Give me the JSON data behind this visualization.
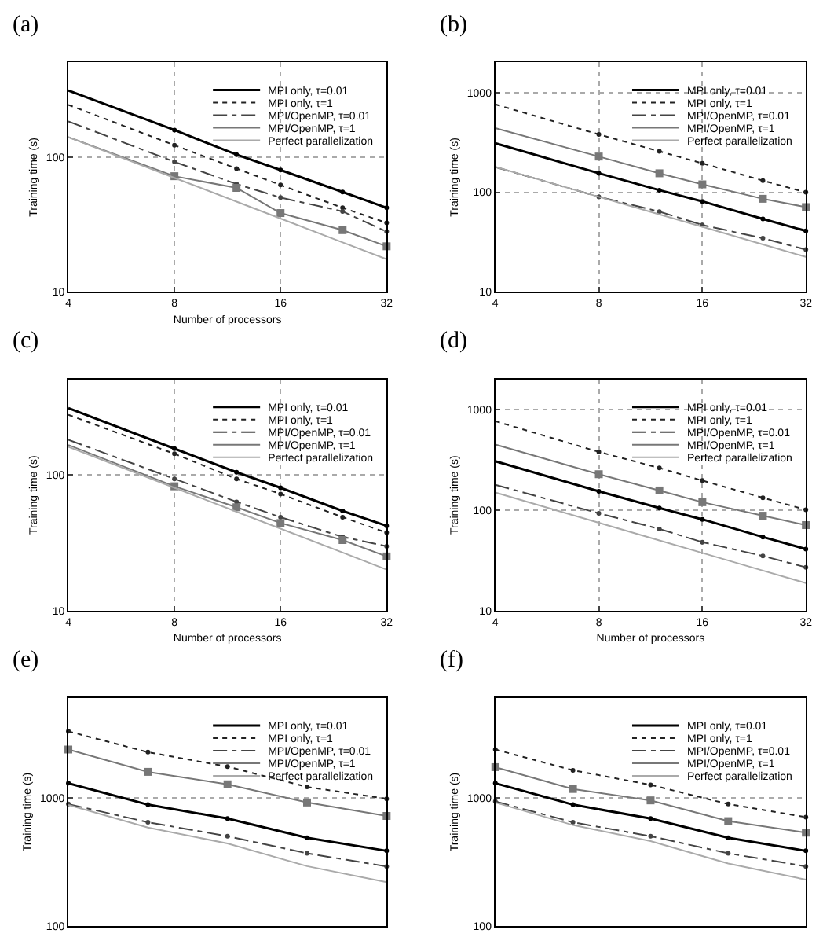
{
  "chart_data": [
    {
      "type": "line",
      "title": "(a)",
      "xlabel": "Number of processors",
      "ylabel": "Training time (s)",
      "log": "xy",
      "grid": true,
      "legend": "top right",
      "x": [
        4,
        8,
        12,
        16,
        24,
        32
      ],
      "xlim": [
        4,
        32
      ],
      "xticks": [
        4,
        8,
        16,
        32
      ],
      "ylim": [
        10,
        500
      ],
      "yticks": [
        10,
        100
      ],
      "series": [
        {
          "name": "MPI only, τ=0.01",
          "color": "#000000",
          "line_style": "solid",
          "marker": "circle",
          "values": [
            310,
            158,
            104,
            80,
            55,
            42
          ]
        },
        {
          "name": "MPI only, τ=1",
          "color": "#222222",
          "line_style": "dotted",
          "marker": "circle",
          "values": [
            243,
            122,
            82,
            62,
            42,
            32.5
          ]
        },
        {
          "name": "MPI/OpenMP, τ=0.01",
          "color": "#444444",
          "line_style": "dashed",
          "marker": "circle",
          "values": [
            183,
            92,
            63,
            50,
            39.5,
            28
          ]
        },
        {
          "name": "MPI/OpenMP, τ=1",
          "color": "#777777",
          "line_style": "solid",
          "marker": "square",
          "values": [
            140,
            72,
            59,
            38.4,
            28.7,
            21.8
          ]
        },
        {
          "name": "Perfect parallelization",
          "color": "#aaaaaa",
          "line_style": "solid",
          "marker": "none",
          "values": [
            140,
            70,
            46.7,
            35,
            23.3,
            17.5
          ]
        }
      ]
    },
    {
      "type": "line",
      "title": "(b)",
      "ylabel": "Training time (s)",
      "log": "xy",
      "grid": true,
      "legend": "top right",
      "x": [
        4,
        8,
        12,
        16,
        24,
        32
      ],
      "xlim": [
        4,
        32
      ],
      "xticks": [
        4,
        8,
        16,
        32
      ],
      "ylim": [
        10,
        2000
      ],
      "yticks": [
        10,
        100,
        1000
      ],
      "series": [
        {
          "name": "MPI only, τ=0.01",
          "color": "#000000",
          "line_style": "solid",
          "marker": "circle",
          "values": [
            310,
            155,
            105,
            81,
            54,
            41
          ]
        },
        {
          "name": "MPI only, τ=1",
          "color": "#222222",
          "line_style": "dotted",
          "marker": "circle",
          "values": [
            760,
            380,
            257,
            195,
            131,
            100
          ]
        },
        {
          "name": "MPI/OpenMP, τ=0.01",
          "color": "#444444",
          "line_style": "dashed",
          "marker": "circle",
          "values": [
            179,
            90,
            64,
            47,
            34.6,
            26.6
          ]
        },
        {
          "name": "MPI/OpenMP, τ=1",
          "color": "#777777",
          "line_style": "solid",
          "marker": "square",
          "values": [
            439,
            228,
            155,
            120,
            86,
            71
          ]
        },
        {
          "name": "Perfect parallelization",
          "color": "#aaaaaa",
          "line_style": "solid",
          "marker": "none",
          "values": [
            180,
            90,
            60,
            45,
            30,
            22.5
          ]
        }
      ]
    },
    {
      "type": "line",
      "title": "(c)",
      "xlabel": "Number of processors",
      "ylabel": "Training time (s)",
      "log": "xy",
      "grid": true,
      "legend": "top right",
      "x": [
        4,
        8,
        12,
        16,
        24,
        32
      ],
      "xlim": [
        4,
        32
      ],
      "xticks": [
        4,
        8,
        16,
        32
      ],
      "ylim": [
        10,
        500
      ],
      "yticks": [
        10,
        100
      ],
      "series": [
        {
          "name": "MPI only, τ=0.01",
          "color": "#000000",
          "line_style": "solid",
          "marker": "circle",
          "values": [
            308,
            155,
            104,
            80,
            54,
            42
          ]
        },
        {
          "name": "MPI only, τ=1",
          "color": "#222222",
          "line_style": "dotted",
          "marker": "circle",
          "values": [
            275,
            142,
            93,
            72,
            48.6,
            37.4
          ]
        },
        {
          "name": "MPI/OpenMP, τ=0.01",
          "color": "#444444",
          "line_style": "dashed",
          "marker": "circle",
          "values": [
            180,
            93,
            63,
            48.6,
            34.8,
            29.7
          ]
        },
        {
          "name": "MPI/OpenMP, τ=1",
          "color": "#777777",
          "line_style": "solid",
          "marker": "square",
          "values": [
            165,
            82,
            57.5,
            44,
            33,
            25
          ]
        },
        {
          "name": "Perfect parallelization",
          "color": "#aaaaaa",
          "line_style": "solid",
          "marker": "none",
          "values": [
            160,
            80,
            53.3,
            40,
            26.7,
            20
          ]
        }
      ]
    },
    {
      "type": "line",
      "title": "(d)",
      "xlabel": "Number of processors",
      "ylabel": "Training time (s)",
      "log": "xy",
      "grid": true,
      "legend": "top right",
      "x": [
        4,
        8,
        12,
        16,
        24,
        32
      ],
      "xlim": [
        4,
        32
      ],
      "xticks": [
        4,
        8,
        16,
        32
      ],
      "ylim": [
        10,
        2000
      ],
      "yticks": [
        10,
        100,
        1000
      ],
      "series": [
        {
          "name": "MPI only, τ=0.01",
          "color": "#000000",
          "line_style": "solid",
          "marker": "circle",
          "values": [
            307,
            154,
            105,
            81,
            54,
            41
          ]
        },
        {
          "name": "MPI only, τ=1",
          "color": "#222222",
          "line_style": "dotted",
          "marker": "circle",
          "values": [
            769,
            380,
            263,
            197,
            133,
            101
          ]
        },
        {
          "name": "MPI/OpenMP, τ=0.01",
          "color": "#444444",
          "line_style": "dashed",
          "marker": "circle",
          "values": [
            179,
            93,
            65,
            48,
            35,
            27
          ]
        },
        {
          "name": "MPI/OpenMP, τ=1",
          "color": "#777777",
          "line_style": "solid",
          "marker": "square",
          "values": [
            450,
            228,
            157,
            120,
            88,
            71
          ]
        },
        {
          "name": "Perfect parallelization",
          "color": "#aaaaaa",
          "line_style": "solid",
          "marker": "none",
          "values": [
            150,
            75,
            50,
            37.5,
            25,
            18.8
          ]
        }
      ]
    },
    {
      "type": "line",
      "title": "(e)",
      "ylabel": "Training time (s)",
      "log": "y",
      "grid": "y",
      "legend": "top right",
      "tick_labels": "y",
      "categories": [
        null,
        null,
        null,
        null,
        null
      ],
      "ylim": [
        100,
        6000
      ],
      "yticks": [
        100,
        1000
      ],
      "series": [
        {
          "name": "MPI only, τ=0.01",
          "color": "#000000",
          "line_style": "solid",
          "marker": "circle",
          "values": [
            1300,
            885,
            689,
            488,
            386
          ]
        },
        {
          "name": "MPI only, τ=1",
          "color": "#222222",
          "line_style": "dotted",
          "marker": "circle",
          "values": [
            3300,
            2270,
            1750,
            1217,
            982
          ]
        },
        {
          "name": "MPI/OpenMP, τ=0.01",
          "color": "#444444",
          "line_style": "dashed",
          "marker": "circle",
          "values": [
            894,
            645,
            502,
            369,
            292
          ]
        },
        {
          "name": "MPI/OpenMP, τ=1",
          "color": "#777777",
          "line_style": "solid",
          "marker": "square",
          "values": [
            2380,
            1594,
            1274,
            920,
            722
          ]
        },
        {
          "name": "Perfect parallelization",
          "color": "#aaaaaa",
          "line_style": "solid",
          "marker": "none",
          "values": [
            880,
            587,
            440,
            293,
            220
          ]
        }
      ]
    },
    {
      "type": "line",
      "title": "(f)",
      "ylabel": "Training time (s)",
      "log": "y",
      "grid": "y",
      "legend": "top right",
      "tick_labels": "y",
      "categories": [
        null,
        null,
        null,
        null,
        null
      ],
      "ylim": [
        100,
        6000
      ],
      "yticks": [
        100,
        1000
      ],
      "series": [
        {
          "name": "MPI only, τ=0.01",
          "color": "#000000",
          "line_style": "solid",
          "marker": "circle",
          "values": [
            1300,
            885,
            689,
            488,
            386
          ]
        },
        {
          "name": "MPI only, τ=1",
          "color": "#222222",
          "line_style": "dotted",
          "marker": "circle",
          "values": [
            2380,
            1640,
            1262,
            894,
            708
          ]
        },
        {
          "name": "MPI/OpenMP, τ=0.01",
          "color": "#444444",
          "line_style": "dashed",
          "marker": "circle",
          "values": [
            937,
            645,
            502,
            369,
            292
          ]
        },
        {
          "name": "MPI/OpenMP, τ=1",
          "color": "#777777",
          "line_style": "solid",
          "marker": "square",
          "values": [
            1734,
            1172,
            955,
            658,
            535
          ]
        },
        {
          "name": "Perfect parallelization",
          "color": "#aaaaaa",
          "line_style": "solid",
          "marker": "none",
          "values": [
            920,
            613,
            460,
            307,
            230
          ]
        }
      ]
    }
  ]
}
